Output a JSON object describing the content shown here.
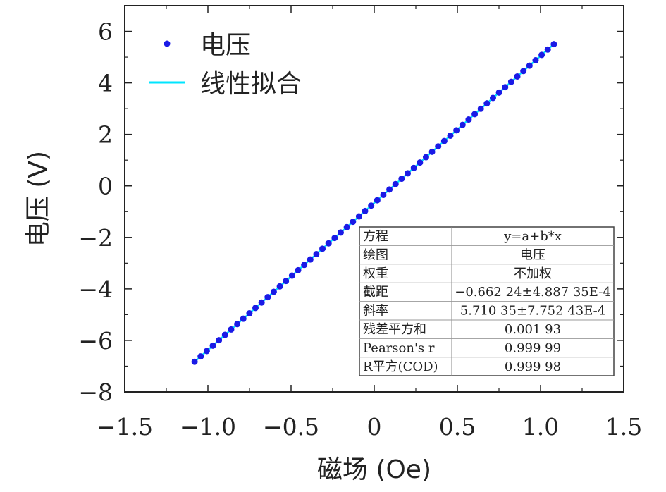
{
  "chart_data": {
    "type": "scatter",
    "xlabel": "磁场 (Oe)",
    "ylabel": "电压 (V)",
    "xlim": [
      -1.5,
      1.5
    ],
    "ylim": [
      -8,
      7
    ],
    "xticks": [
      -1.5,
      -1.0,
      -0.5,
      0,
      0.5,
      1.0,
      1.5
    ],
    "xtick_labels": [
      "−1.5",
      "−1.0",
      "−0.5",
      "0",
      "0.5",
      "1.0",
      "1.5"
    ],
    "yticks": [
      -8,
      -6,
      -4,
      -2,
      0,
      2,
      4,
      6
    ],
    "ytick_labels": [
      "−8",
      "−6",
      "−4",
      "−2",
      "0",
      "2",
      "4",
      "6"
    ],
    "grid": false,
    "legend_position": "top-left",
    "series": [
      {
        "name": "电压",
        "kind": "scatter",
        "color": "#1a1ae6",
        "x_range": [
          -1.08,
          1.08
        ],
        "n_points": 60,
        "intercept": -0.66224,
        "slope": 5.71035
      },
      {
        "name": "线性拟合",
        "kind": "line",
        "color": "#00e5ff",
        "x_range": [
          -1.08,
          1.08
        ],
        "intercept": -0.66224,
        "slope": 5.71035
      }
    ],
    "fit_table": [
      {
        "label": "方程",
        "value": "y=a+b*x"
      },
      {
        "label": "绘图",
        "value": "电压"
      },
      {
        "label": "权重",
        "value": "不加权"
      },
      {
        "label": "截距",
        "value": "−0.662 24±4.887 35E-4"
      },
      {
        "label": "斜率",
        "value": "5.710 35±7.752 43E-4"
      },
      {
        "label": "残差平方和",
        "value": "0.001 93"
      },
      {
        "label": "Pearson's r",
        "value": "0.999 99"
      },
      {
        "label": "R平方(COD)",
        "value": "0.999 98"
      }
    ]
  }
}
